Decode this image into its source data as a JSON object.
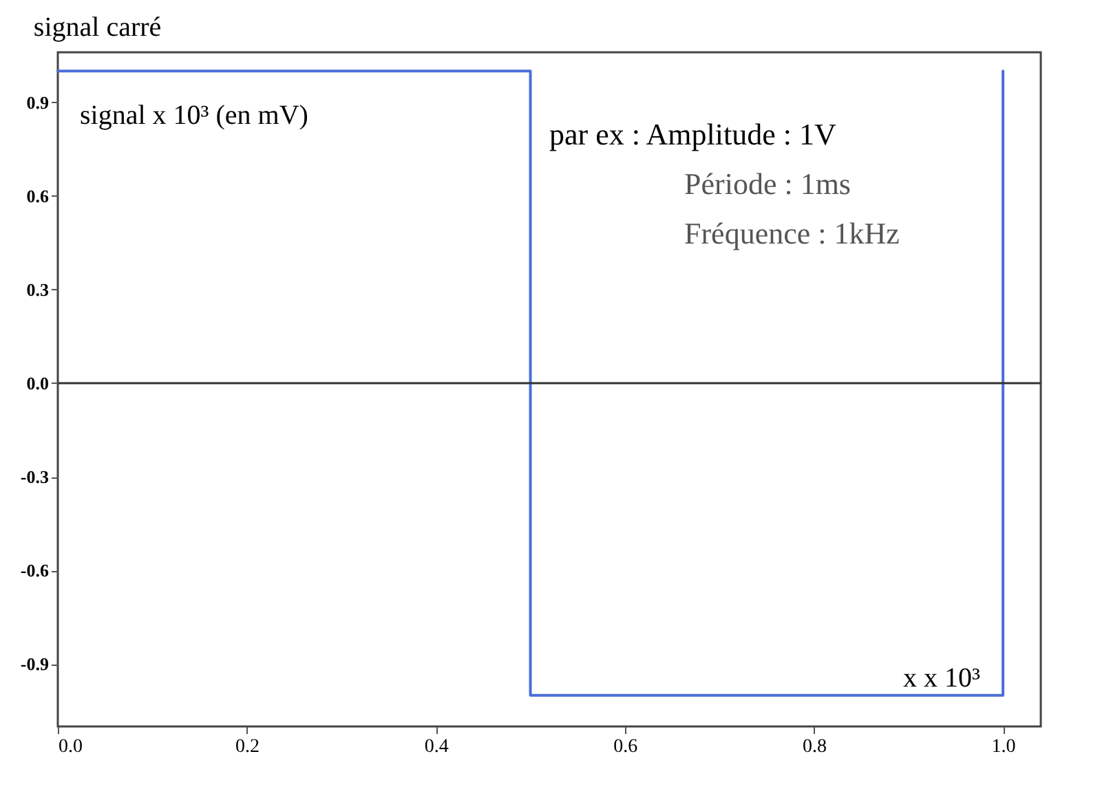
{
  "chart_data": {
    "type": "line",
    "title": "signal carré",
    "ylabel": "signal  x 10³   (en mV)",
    "xlabel": "x   x 10³",
    "annotations": [
      "par ex : Amplitude  :  1V",
      "Période  :      1ms",
      "Fréquence  :  1kHz"
    ],
    "x": [
      0,
      0.5,
      0.5,
      1.0,
      1.0
    ],
    "series": [
      {
        "color": "#4a6fd8",
        "values": [
          1.0,
          1.0,
          -1.0,
          -1.0,
          1.0
        ]
      }
    ],
    "xlim": [
      0,
      1.04
    ],
    "ylim": [
      -1.1,
      1.06
    ],
    "xticks": [
      {
        "value": 0,
        "label": "0.0"
      },
      0.2,
      0.4,
      0.6,
      0.8,
      {
        "value": 1.0,
        "label": "1.0"
      }
    ],
    "yticks": [
      {
        "value": -0.9,
        "label": "-0.9"
      },
      {
        "value": -0.6,
        "label": "-0.6"
      },
      {
        "value": -0.3,
        "label": "-0.3"
      },
      {
        "value": 0,
        "label": "0.0"
      },
      0.3,
      0.6,
      0.9
    ],
    "ref_lines": [
      {
        "axis": "y",
        "value": 0,
        "color": "#333333",
        "line_style": "solid"
      }
    ],
    "grid": false,
    "marker": "none",
    "line_style": "solid"
  }
}
